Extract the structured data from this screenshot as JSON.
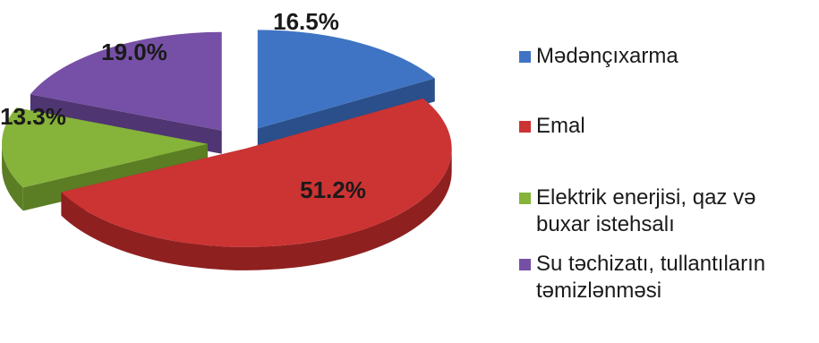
{
  "chart_data": {
    "type": "pie",
    "categories": [
      "Mədənçıxarma",
      "Emal",
      "Elektrik enerjisi, qaz və buxar istehsalı",
      "Su təchizatı, tullantıların təmizlənməsi"
    ],
    "values": [
      16.5,
      51.2,
      13.3,
      19.0
    ],
    "data_labels": [
      "16.5%",
      "51.2%",
      "13.3%",
      "19.0%"
    ],
    "colors": [
      "#3f74c4",
      "#cc3333",
      "#86b33a",
      "#7650a6"
    ],
    "side_colors": [
      "#2a4f8a",
      "#8f2020",
      "#5b7d24",
      "#4f3572"
    ],
    "exploded": true,
    "style": "3d",
    "legend_position": "right"
  }
}
